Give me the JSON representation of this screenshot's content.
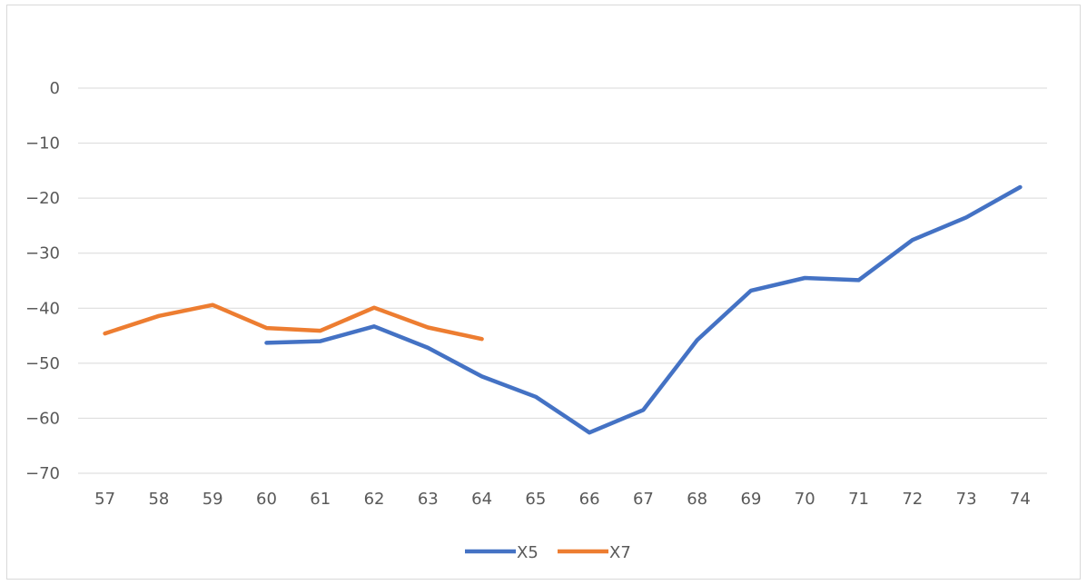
{
  "chart_data": {
    "type": "line",
    "title": "",
    "xlabel": "",
    "ylabel": "",
    "categories": [
      "57",
      "58",
      "59",
      "60",
      "61",
      "62",
      "63",
      "64",
      "65",
      "66",
      "67",
      "68",
      "69",
      "70",
      "71",
      "72",
      "73",
      "74"
    ],
    "ylim": [
      -70,
      0
    ],
    "yticks": [
      0,
      -10,
      -20,
      -30,
      -40,
      -50,
      -60,
      -70
    ],
    "grid": true,
    "legend_position": "bottom",
    "series": [
      {
        "name": "X5",
        "color": "#4472C4",
        "values": [
          null,
          null,
          null,
          -46.3,
          -46.0,
          -43.3,
          -47.2,
          -52.4,
          -56.1,
          -62.6,
          -58.5,
          -45.8,
          -36.8,
          -34.5,
          -34.9,
          -27.6,
          -23.5,
          -18.0
        ]
      },
      {
        "name": "X7",
        "color": "#ED7D31",
        "values": [
          -44.6,
          -41.4,
          -39.4,
          -43.6,
          -44.1,
          -39.9,
          -43.5,
          -45.6,
          null,
          null,
          null,
          null,
          null,
          null,
          null,
          null,
          null,
          null
        ]
      }
    ]
  }
}
